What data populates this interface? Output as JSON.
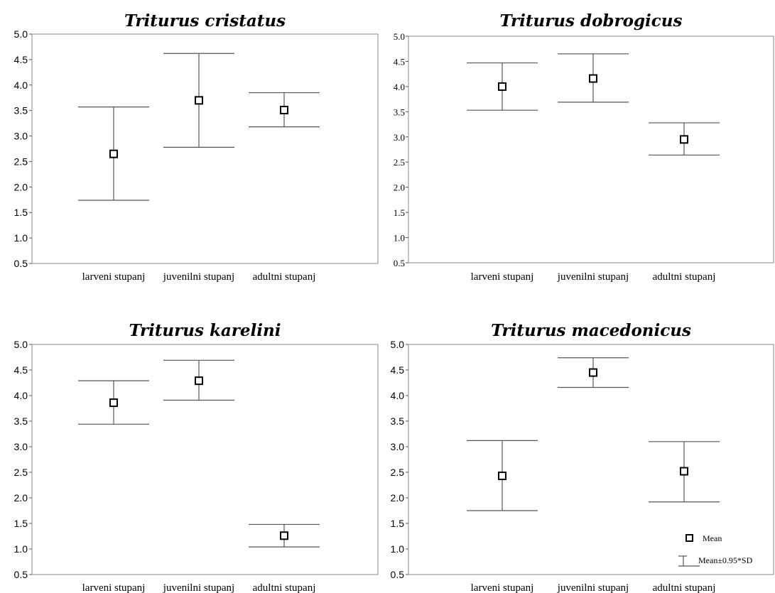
{
  "chart_data": [
    {
      "type": "errorbar",
      "title": "Triturus cristatus",
      "categories": [
        "larveni stupanj",
        "juvenilni stupanj",
        "adultni stupanj"
      ],
      "mean": [
        2.65,
        3.7,
        3.51
      ],
      "lower": [
        1.74,
        2.78,
        3.18
      ],
      "upper": [
        3.57,
        4.62,
        3.85
      ],
      "ylim": [
        0.5,
        5.0
      ],
      "yticks": [
        "0.5",
        "1.0",
        "1.5",
        "2.0",
        "2.5",
        "3.0",
        "3.5",
        "4.0",
        "4.5",
        "5.0"
      ],
      "grid": false
    },
    {
      "type": "errorbar",
      "title": "Triturus dobrogicus",
      "categories": [
        "larveni stupanj",
        "juvenilni stupanj",
        "adultni stupanj"
      ],
      "mean": [
        4.0,
        4.16,
        2.95
      ],
      "lower": [
        3.53,
        3.69,
        2.64
      ],
      "upper": [
        4.47,
        4.65,
        3.28
      ],
      "ylim": [
        0.5,
        5.0
      ],
      "yticks": [
        "0.5",
        "1.0",
        "1.5",
        "2.0",
        "2.5",
        "3.0",
        "3.5",
        "4.0",
        "4.5",
        "5.0"
      ],
      "grid": false
    },
    {
      "type": "errorbar",
      "title": "Triturus karelini",
      "categories": [
        "larveni stupanj",
        "juvenilni stupanj",
        "adultni stupanj"
      ],
      "mean": [
        3.86,
        4.29,
        1.26
      ],
      "lower": [
        3.44,
        3.91,
        1.04
      ],
      "upper": [
        4.29,
        4.69,
        1.48
      ],
      "ylim": [
        0.5,
        5.0
      ],
      "yticks": [
        "0.5",
        "1.0",
        "1.5",
        "2.0",
        "2.5",
        "3.0",
        "3.5",
        "4.0",
        "4.5",
        "5.0"
      ],
      "grid": false
    },
    {
      "type": "errorbar",
      "title": "Triturus macedonicus",
      "categories": [
        "larveni stupanj",
        "juvenilni stupanj",
        "adultni stupanj"
      ],
      "mean": [
        2.43,
        4.45,
        2.52
      ],
      "lower": [
        1.75,
        4.16,
        1.92
      ],
      "upper": [
        3.12,
        4.74,
        3.1
      ],
      "ylim": [
        0.5,
        5.0
      ],
      "yticks": [
        "0.5",
        "1.0",
        "1.5",
        "2.0",
        "2.5",
        "3.0",
        "3.5",
        "4.0",
        "4.5",
        "5.0"
      ],
      "grid": false,
      "legend": {
        "position": "bottom-right",
        "mean_label": "Mean",
        "errorbar_label": "Mean±0.95*SD"
      }
    }
  ]
}
